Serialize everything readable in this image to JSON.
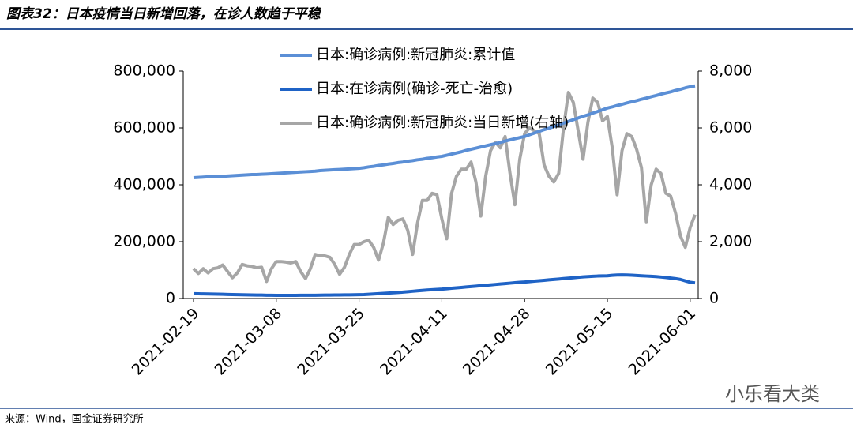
{
  "chart_data": {
    "type": "line",
    "title": "图表32：日本疫情当日新增回落，在诊人数趋于平稳",
    "source": "来源：Wind，国金证券研究所",
    "watermark": "小乐看大类",
    "x": [
      "2021-02-19",
      "2021-02-20",
      "2021-02-21",
      "2021-02-22",
      "2021-02-23",
      "2021-02-24",
      "2021-02-25",
      "2021-02-26",
      "2021-02-27",
      "2021-02-28",
      "2021-03-01",
      "2021-03-02",
      "2021-03-03",
      "2021-03-04",
      "2021-03-05",
      "2021-03-06",
      "2021-03-07",
      "2021-03-08",
      "2021-03-09",
      "2021-03-10",
      "2021-03-11",
      "2021-03-12",
      "2021-03-13",
      "2021-03-14",
      "2021-03-15",
      "2021-03-16",
      "2021-03-17",
      "2021-03-18",
      "2021-03-19",
      "2021-03-20",
      "2021-03-21",
      "2021-03-22",
      "2021-03-23",
      "2021-03-24",
      "2021-03-25",
      "2021-03-26",
      "2021-03-27",
      "2021-03-28",
      "2021-03-29",
      "2021-03-30",
      "2021-03-31",
      "2021-04-01",
      "2021-04-02",
      "2021-04-03",
      "2021-04-04",
      "2021-04-05",
      "2021-04-06",
      "2021-04-07",
      "2021-04-08",
      "2021-04-09",
      "2021-04-10",
      "2021-04-11",
      "2021-04-12",
      "2021-04-13",
      "2021-04-14",
      "2021-04-15",
      "2021-04-16",
      "2021-04-17",
      "2021-04-18",
      "2021-04-19",
      "2021-04-20",
      "2021-04-21",
      "2021-04-22",
      "2021-04-23",
      "2021-04-24",
      "2021-04-25",
      "2021-04-26",
      "2021-04-27",
      "2021-04-28",
      "2021-04-29",
      "2021-04-30",
      "2021-05-01",
      "2021-05-02",
      "2021-05-03",
      "2021-05-04",
      "2021-05-05",
      "2021-05-06",
      "2021-05-07",
      "2021-05-08",
      "2021-05-09",
      "2021-05-10",
      "2021-05-11",
      "2021-05-12",
      "2021-05-13",
      "2021-05-14",
      "2021-05-15",
      "2021-05-16",
      "2021-05-17",
      "2021-05-18",
      "2021-05-19",
      "2021-05-20",
      "2021-05-21",
      "2021-05-22",
      "2021-05-23",
      "2021-05-24",
      "2021-05-25",
      "2021-05-26",
      "2021-05-27",
      "2021-05-28",
      "2021-05-29",
      "2021-05-30",
      "2021-05-31",
      "2021-06-01",
      "2021-06-02"
    ],
    "xticks": [
      "2021-02-19",
      "2021-03-08",
      "2021-03-25",
      "2021-04-11",
      "2021-04-28",
      "2021-05-15",
      "2021-06-01"
    ],
    "ylim": [
      0,
      800000
    ],
    "yticks": [
      0,
      {
        "value": 200000,
        "label": "200,000"
      },
      {
        "value": 400000,
        "label": "400,000"
      },
      {
        "value": 600000,
        "label": "600,000"
      },
      {
        "value": 800000,
        "label": "800,000"
      }
    ],
    "y2lim": [
      0,
      8000
    ],
    "y2ticks": [
      0,
      {
        "value": 2000,
        "label": "2,000"
      },
      {
        "value": 4000,
        "label": "4,000"
      },
      {
        "value": 6000,
        "label": "6,000"
      },
      {
        "value": 8000,
        "label": "8,000"
      }
    ],
    "series": [
      {
        "name": "日本:确诊病例:新冠肺炎:累计值",
        "color": "#5b8fd6",
        "width": 4,
        "values": [
          425000,
          426000,
          427000,
          428000,
          429000,
          429000,
          430000,
          431000,
          432000,
          433000,
          434000,
          435000,
          436000,
          436000,
          437000,
          438000,
          439000,
          440000,
          441000,
          442000,
          443000,
          444000,
          445000,
          446000,
          447000,
          448000,
          450000,
          451000,
          452000,
          453000,
          454000,
          455000,
          456000,
          457000,
          458000,
          460000,
          463000,
          465000,
          468000,
          470000,
          473000,
          475000,
          478000,
          480000,
          483000,
          485000,
          488000,
          490000,
          493000,
          495000,
          498000,
          500000,
          504000,
          508000,
          512000,
          516000,
          521000,
          525000,
          529000,
          533000,
          537000,
          541000,
          545000,
          549000,
          554000,
          558000,
          562000,
          566000,
          570000,
          576000,
          582000,
          588000,
          594000,
          599000,
          605000,
          611000,
          617000,
          623000,
          629000,
          635000,
          641000,
          646000,
          652000,
          658000,
          664000,
          670000,
          674000,
          679000,
          683000,
          688000,
          692000,
          696000,
          701000,
          705000,
          710000,
          714000,
          719000,
          723000,
          727000,
          732000,
          736000,
          741000,
          745000,
          748000
        ]
      },
      {
        "name": "日本:在诊病例(确诊-死亡-治愈)",
        "color": "#1f63c6",
        "width": 4,
        "values": [
          17000,
          16600,
          16200,
          15900,
          15500,
          15100,
          14800,
          14400,
          14000,
          13700,
          13300,
          13000,
          12600,
          12300,
          12000,
          11600,
          11300,
          11000,
          11000,
          11000,
          11100,
          11200,
          11300,
          11400,
          11500,
          11600,
          11800,
          12000,
          12200,
          12400,
          12600,
          12800,
          13000,
          13300,
          13600,
          14000,
          15000,
          16000,
          17000,
          18000,
          19000,
          20000,
          21000,
          22500,
          24000,
          25500,
          27000,
          28500,
          30000,
          31000,
          32000,
          33000,
          34500,
          36000,
          37500,
          39000,
          40500,
          42000,
          43500,
          45000,
          46500,
          48000,
          49500,
          51000,
          52500,
          54000,
          55500,
          57000,
          58000,
          59500,
          61000,
          62500,
          64000,
          65500,
          67000,
          68500,
          70000,
          71500,
          73000,
          74500,
          76000,
          77000,
          78000,
          79000,
          79500,
          80000,
          81500,
          82500,
          83000,
          82500,
          82000,
          81000,
          80000,
          79000,
          78000,
          77000,
          75500,
          74000,
          72000,
          70000,
          67000,
          62000,
          57000,
          55000
        ]
      },
      {
        "name": "日本:确诊病例:新冠肺炎:当日新增(右轴)",
        "color": "#a6a6a6",
        "width": 4,
        "axis": "y2",
        "values": [
          1050,
          880,
          1050,
          900,
          1050,
          1080,
          1180,
          950,
          730,
          900,
          1200,
          1150,
          1130,
          1080,
          1100,
          600,
          1050,
          1300,
          1300,
          1280,
          1250,
          1300,
          950,
          700,
          1050,
          1550,
          1500,
          1500,
          1450,
          1200,
          850,
          1100,
          1550,
          1900,
          1900,
          2000,
          2050,
          1800,
          1350,
          1950,
          2850,
          2600,
          2750,
          2800,
          2400,
          1550,
          2650,
          3450,
          3450,
          3700,
          3650,
          2800,
          2100,
          3700,
          4300,
          4550,
          4550,
          4800,
          4100,
          2900,
          4300,
          5200,
          5500,
          5300,
          5700,
          4400,
          3300,
          4900,
          5800,
          6000,
          5900,
          5800,
          4700,
          4300,
          4100,
          4400,
          6000,
          7250,
          6900,
          5900,
          4900,
          6200,
          7050,
          6900,
          6250,
          6400,
          5300,
          3650,
          5200,
          5800,
          5700,
          5250,
          4600,
          2700,
          4000,
          4550,
          4400,
          3700,
          3600,
          3000,
          2200,
          1800,
          2500,
          2950
        ]
      }
    ]
  }
}
